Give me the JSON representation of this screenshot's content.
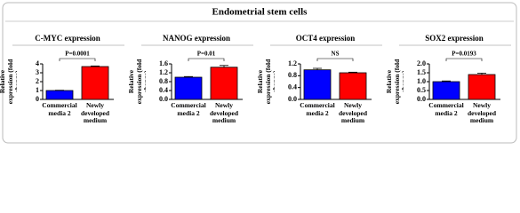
{
  "title": "Endometrial stem cells",
  "chart_data": [
    {
      "type": "bar",
      "title": "C-MYC expression",
      "y_label": "Relative expression (fold change)",
      "categories": [
        "Commercial media 2",
        "Newly developed medium"
      ],
      "values": [
        1.0,
        3.7
      ],
      "errors": [
        0.03,
        0.07
      ],
      "colors": [
        "#0000ff",
        "#ff0000"
      ],
      "annotation": "P=0.0001",
      "ylim": [
        0,
        4
      ],
      "yticks": [
        0,
        1,
        2,
        3,
        4
      ]
    },
    {
      "type": "bar",
      "title": "NANOG expression",
      "y_label": "Relative expression (fold change)",
      "categories": [
        "Commercial media 2",
        "Newly developed medium"
      ],
      "values": [
        1.0,
        1.45
      ],
      "errors": [
        0.03,
        0.08
      ],
      "colors": [
        "#0000ff",
        "#ff0000"
      ],
      "annotation": "P=0.01",
      "ylim": [
        0,
        1.6
      ],
      "yticks": [
        {
          "value": 0,
          "label": "0.0"
        },
        0.4,
        0.8,
        1.2,
        1.6
      ]
    },
    {
      "type": "bar",
      "title": "OCT4 expression",
      "y_label": "Relative expression (fold change)",
      "categories": [
        "Commercial media 2",
        "Newly developed medium"
      ],
      "values": [
        1.0,
        0.9
      ],
      "errors": [
        0.05,
        0.02
      ],
      "colors": [
        "#0000ff",
        "#ff0000"
      ],
      "annotation": "NS",
      "ylim": [
        0,
        1.2
      ],
      "yticks": [
        {
          "value": 0,
          "label": "0.0"
        },
        0.4,
        0.8,
        1.2
      ]
    },
    {
      "type": "bar",
      "title": "SOX2 expression",
      "y_label": "Relative expression (fold change)",
      "categories": [
        "Commercial media 2",
        "Newly developed medium"
      ],
      "values": [
        1.0,
        1.4
      ],
      "errors": [
        0.04,
        0.08
      ],
      "colors": [
        "#0000ff",
        "#ff0000"
      ],
      "annotation": "P=0.0193",
      "ylim": [
        0,
        2
      ],
      "yticks": [
        {
          "value": 0,
          "label": "0.0"
        },
        0.5,
        {
          "value": 1,
          "label": "1.0"
        },
        1.5,
        {
          "value": 2,
          "label": "2.0"
        }
      ]
    }
  ]
}
